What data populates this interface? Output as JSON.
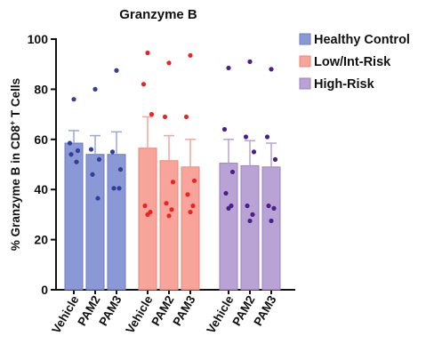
{
  "chart_data": {
    "type": "bar",
    "title": "Granzyme B",
    "ylabel_prefix": "% Granzyme B in CD8",
    "ylabel_sup": "+",
    "ylabel_suffix": " T Cells",
    "ylim": [
      0,
      100
    ],
    "yticks": [
      0,
      20,
      40,
      60,
      80,
      100
    ],
    "grid": false,
    "legend_position": "right",
    "groups": [
      {
        "name": "Healthy Control",
        "bar_color": "#8a98d6",
        "edge_color": "#6b7cc4",
        "point_color": "#2f3f9a",
        "errbar_color": "#9aa6dc",
        "categories": [
          "Vehicle",
          "PAM2",
          "PAM3"
        ],
        "values": [
          58.5,
          54,
          54
        ],
        "errors": [
          5,
          7.5,
          9
        ],
        "points": [
          [
            76,
            58.5,
            55.5,
            54,
            51
          ],
          [
            80,
            56,
            52,
            46,
            36.5
          ],
          [
            87.5,
            55,
            48,
            40.5,
            40.5
          ]
        ]
      },
      {
        "name": "Low/Int-Risk",
        "bar_color": "#f7a59a",
        "edge_color": "#ee8578",
        "point_color": "#ee2222",
        "errbar_color": "#f7a59a",
        "categories": [
          "Vehicle",
          "PAM2",
          "PAM3"
        ],
        "values": [
          56.5,
          51.5,
          49
        ],
        "errors": [
          12.5,
          10,
          11
        ],
        "points": [
          [
            94.5,
            82,
            70,
            33.5,
            31,
            30
          ],
          [
            90.5,
            69,
            43,
            34.5,
            32,
            29.5
          ],
          [
            93.5,
            69,
            43.5,
            38,
            33.5,
            31
          ]
        ]
      },
      {
        "name": "High-Risk",
        "bar_color": "#b9a2d4",
        "edge_color": "#9d80c2",
        "point_color": "#4a1f8c",
        "errbar_color": "#b9a2d4",
        "categories": [
          "Vehicle",
          "PAM2",
          "PAM3"
        ],
        "values": [
          50.5,
          49.5,
          49
        ],
        "errors": [
          9.5,
          10,
          9.5
        ],
        "points": [
          [
            88.5,
            64,
            47,
            38.5,
            33.5,
            32.5
          ],
          [
            91,
            61,
            55,
            33.5,
            30,
            27.5
          ],
          [
            88,
            61,
            52,
            33.5,
            32.5,
            27.5
          ]
        ]
      }
    ]
  }
}
